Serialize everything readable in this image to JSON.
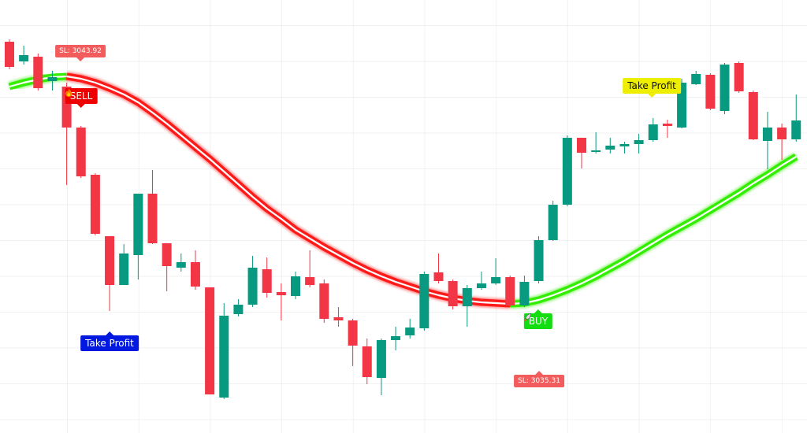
{
  "chart_data": {
    "type": "candlestick",
    "ylim": [
      3034.2,
      3045.2
    ],
    "up_color": "#089981",
    "down_color": "#f23645",
    "open": [
      3044.14,
      3043.64,
      3043.76,
      3043.14,
      3043.0,
      3041.96,
      3040.76,
      3039.2,
      3037.96,
      3038.72,
      3040.28,
      3039.02,
      3038.4,
      3038.54,
      3037.9,
      3035.1,
      3037.22,
      3037.46,
      3038.36,
      3037.78,
      3037.68,
      3038.16,
      3038.0,
      3037.14,
      3037.06,
      3036.4,
      3035.6,
      3036.56,
      3036.68,
      3036.86,
      3038.28,
      3038.06,
      3037.42,
      3037.88,
      3038.0,
      3038.16,
      3037.44,
      3038.06,
      3039.1,
      3040.0,
      3041.7,
      3041.34,
      3041.4,
      3041.48,
      3041.54,
      3041.64,
      3042.06,
      3041.96,
      3043.06,
      3043.3,
      3042.38,
      3043.6,
      3042.86,
      3041.62,
      3041.96,
      3041.66
    ],
    "high": [
      3044.2,
      3044.04,
      3043.84,
      3043.4,
      3043.1,
      3042.0,
      3040.8,
      3039.2,
      3039.0,
      3040.28,
      3040.88,
      3039.02,
      3038.76,
      3038.84,
      3037.9,
      3037.5,
      3037.6,
      3038.7,
      3038.66,
      3038.0,
      3038.3,
      3038.84,
      3038.1,
      3037.4,
      3037.1,
      3036.6,
      3036.6,
      3036.9,
      3037.1,
      3038.3,
      3038.76,
      3038.1,
      3037.96,
      3038.3,
      3038.64,
      3038.2,
      3038.2,
      3039.2,
      3040.1,
      3041.76,
      3041.7,
      3041.84,
      3041.7,
      3041.6,
      3041.8,
      3042.2,
      3042.16,
      3043.2,
      3043.4,
      3043.34,
      3043.6,
      3043.64,
      3042.9,
      3042.36,
      3042.06,
      3042.8
    ],
    "low": [
      3043.44,
      3043.56,
      3042.9,
      3042.9,
      3040.5,
      3040.68,
      3039.22,
      3037.3,
      3037.96,
      3038.1,
      3039.0,
      3037.8,
      3038.3,
      3037.84,
      3035.18,
      3035.06,
      3037.16,
      3037.4,
      3037.64,
      3037.06,
      3037.6,
      3037.9,
      3037.0,
      3036.9,
      3035.9,
      3035.44,
      3035.16,
      3036.3,
      3036.6,
      3036.8,
      3038.0,
      3037.34,
      3036.9,
      3037.84,
      3037.96,
      3037.4,
      3037.4,
      3038.0,
      3039.08,
      3039.96,
      3040.92,
      3041.3,
      3041.3,
      3041.3,
      3041.3,
      3041.6,
      3041.7,
      3041.94,
      3043.04,
      3042.4,
      3042.3,
      3042.84,
      3041.64,
      3040.9,
      3041.14,
      3041.6
    ],
    "close": [
      3043.5,
      3043.8,
      3042.96,
      3043.24,
      3041.96,
      3040.72,
      3039.26,
      3037.96,
      3038.76,
      3040.28,
      3039.02,
      3038.44,
      3038.54,
      3037.92,
      3035.18,
      3037.18,
      3037.46,
      3038.4,
      3037.76,
      3037.7,
      3038.18,
      3037.96,
      3037.1,
      3037.06,
      3036.42,
      3035.62,
      3036.56,
      3036.66,
      3036.88,
      3038.24,
      3038.06,
      3037.42,
      3037.88,
      3038.0,
      3038.16,
      3037.44,
      3038.04,
      3039.1,
      3040.0,
      3041.7,
      3041.32,
      3041.38,
      3041.5,
      3041.54,
      3041.64,
      3042.04,
      3042.0,
      3043.1,
      3043.32,
      3042.44,
      3043.56,
      3042.88,
      3041.66,
      3041.96,
      3041.66,
      3042.14
    ],
    "ma": [
      3043.0,
      3043.1,
      3043.18,
      3043.24,
      3043.26,
      3043.2,
      3043.1,
      3042.96,
      3042.8,
      3042.6,
      3042.34,
      3042.06,
      3041.76,
      3041.46,
      3041.16,
      3040.84,
      3040.52,
      3040.2,
      3039.9,
      3039.64,
      3039.36,
      3039.14,
      3038.92,
      3038.72,
      3038.52,
      3038.34,
      3038.18,
      3038.04,
      3037.92,
      3037.8,
      3037.7,
      3037.62,
      3037.56,
      3037.52,
      3037.5,
      3037.48,
      3037.5,
      3037.58,
      3037.7,
      3037.84,
      3038.0,
      3038.18,
      3038.38,
      3038.58,
      3038.8,
      3039.02,
      3039.24,
      3039.44,
      3039.64,
      3039.86,
      3040.08,
      3040.3,
      3040.54,
      3040.76,
      3041.0,
      3041.22
    ],
    "ma_up_color": "#33ee00",
    "ma_down_color": "#ff1a1a",
    "annotations": [
      {
        "text": "SL: 3043.92",
        "color": "#f25c5c",
        "text_color": "#ffffff"
      },
      {
        "text": "SELL",
        "color": "#ee0000",
        "text_color": "#ffffff"
      },
      {
        "text": "Take Profit",
        "color": "#0018e0",
        "text_color": "#ffffff"
      },
      {
        "text": "BUY",
        "color": "#11dd11",
        "text_color": "#ffffff"
      },
      {
        "text": "SL: 3035.31",
        "color": "#f25c5c",
        "text_color": "#ffffff"
      },
      {
        "text": "Take Profit",
        "color": "#eeee00",
        "text_color": "#111111"
      }
    ]
  }
}
